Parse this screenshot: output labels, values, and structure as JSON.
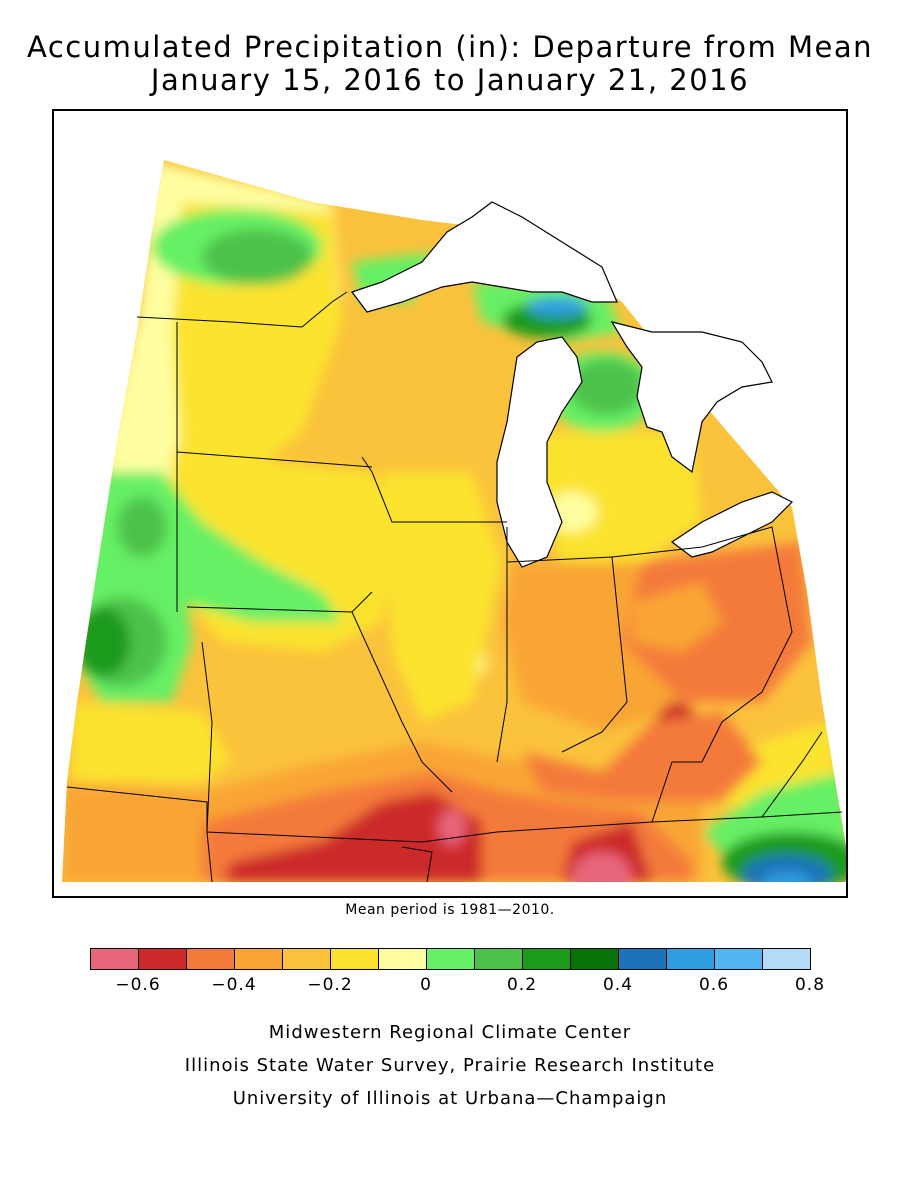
{
  "title": {
    "line1": "Accumulated Precipitation (in): Departure from Mean",
    "line2": "January 15, 2016 to January 21, 2016"
  },
  "map": {
    "region": "Midwest United States",
    "variable": "Accumulated precipitation departure from mean (in)",
    "colors": {
      "lt_-0.6": "#e8667a",
      "-0.6_-0.5": "#cc2a2a",
      "-0.5_-0.4": "#f47a3a",
      "-0.4_-0.3": "#f9a535",
      "-0.3_-0.2": "#fbc23c",
      "-0.2_-0.1": "#fbe32d",
      "-0.1_0": "#fefea0",
      "0_0.1": "#66f065",
      "0.1_0.2": "#4dc24b",
      "0.2_0.3": "#1c9a1c",
      "0.3_0.4": "#077307",
      "0.4_0.5": "#1c74b8",
      "0.5_0.6": "#2f9ee0",
      "0.6_0.7": "#50b5f0",
      "0.7_0.8": "#b4dcf8"
    }
  },
  "mean_note": "Mean period is 1981—2010.",
  "legend": {
    "colors": [
      "#e8667a",
      "#cc2a2a",
      "#f47a3a",
      "#f9a535",
      "#fbc23c",
      "#fbe32d",
      "#fefea0",
      "#66f065",
      "#4dc24b",
      "#1c9a1c",
      "#077307",
      "#1c74b8",
      "#2f9ee0",
      "#50b5f0",
      "#b4dcf8"
    ],
    "ticks": [
      "−0.6",
      "−0.4",
      "−0.2",
      "0",
      "0.2",
      "0.4",
      "0.6",
      "0.8"
    ]
  },
  "credits": {
    "line1": "Midwestern Regional Climate Center",
    "line2": "Illinois State Water Survey, Prairie Research Institute",
    "line3": "University of Illinois at Urbana—Champaign"
  }
}
